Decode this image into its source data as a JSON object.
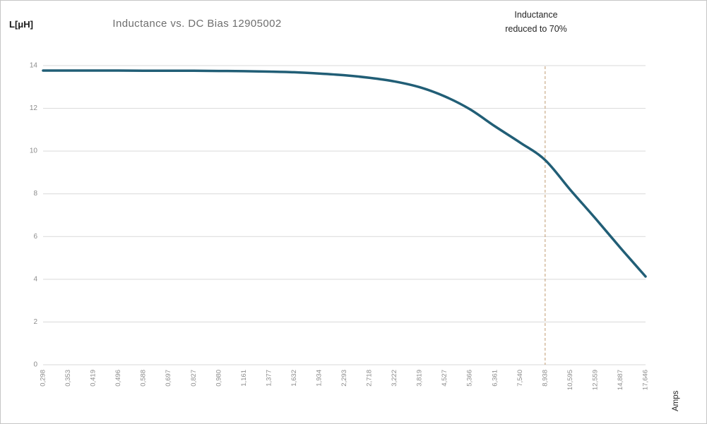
{
  "chart": {
    "y_axis_unit_label": "L[μH]",
    "annotation_line1": "Inductance",
    "annotation_line2": "reduced to 70%"
  },
  "colors": {
    "curve": "#215e76",
    "grid": "#d9d9d9",
    "axis_text": "#8c8c8c",
    "title_text": "#6e6e6e",
    "annotation_text": "#262626",
    "threshold_line": "#bf9a70",
    "frame_border": "#c6c6c6",
    "background": "#ffffff"
  },
  "chart_data": {
    "type": "line",
    "title": "Inductance vs. DC Bias 12905002",
    "xlabel": "Amps",
    "ylabel": "L[μH]",
    "x_axis_type": "category-log-spaced",
    "x_tick_labels": [
      "0,298",
      "0,353",
      "0,419",
      "0,496",
      "0,588",
      "0,697",
      "0,827",
      "0,980",
      "1,161",
      "1,377",
      "1,632",
      "1,934",
      "2,293",
      "2,718",
      "3,222",
      "3,819",
      "4,527",
      "5,366",
      "6,361",
      "7,540",
      "8,938",
      "10,595",
      "12,559",
      "14,887",
      "17,646"
    ],
    "x_values": [
      0.298,
      0.353,
      0.419,
      0.496,
      0.588,
      0.697,
      0.827,
      0.98,
      1.161,
      1.377,
      1.632,
      1.934,
      2.293,
      2.718,
      3.222,
      3.819,
      4.527,
      5.366,
      6.361,
      7.54,
      8.938,
      10.595,
      12.559,
      14.887,
      17.646
    ],
    "series": [
      {
        "name": "Inductance",
        "values": [
          13.77,
          13.77,
          13.77,
          13.77,
          13.76,
          13.76,
          13.76,
          13.75,
          13.74,
          13.72,
          13.69,
          13.63,
          13.55,
          13.43,
          13.26,
          12.99,
          12.56,
          11.96,
          11.16,
          10.4,
          9.58,
          8.19,
          6.85,
          5.47,
          4.13
        ]
      }
    ],
    "ylim": [
      0,
      14
    ],
    "y_ticks": [
      0,
      2,
      4,
      6,
      8,
      10,
      12,
      14
    ],
    "grid": "horizontal",
    "legend": "none",
    "threshold_line": {
      "x_tick_label": "8,938",
      "x_index": 20,
      "style": "dashed",
      "annotation": "Inductance reduced to 70%",
      "value_at_threshold": 9.58
    }
  }
}
